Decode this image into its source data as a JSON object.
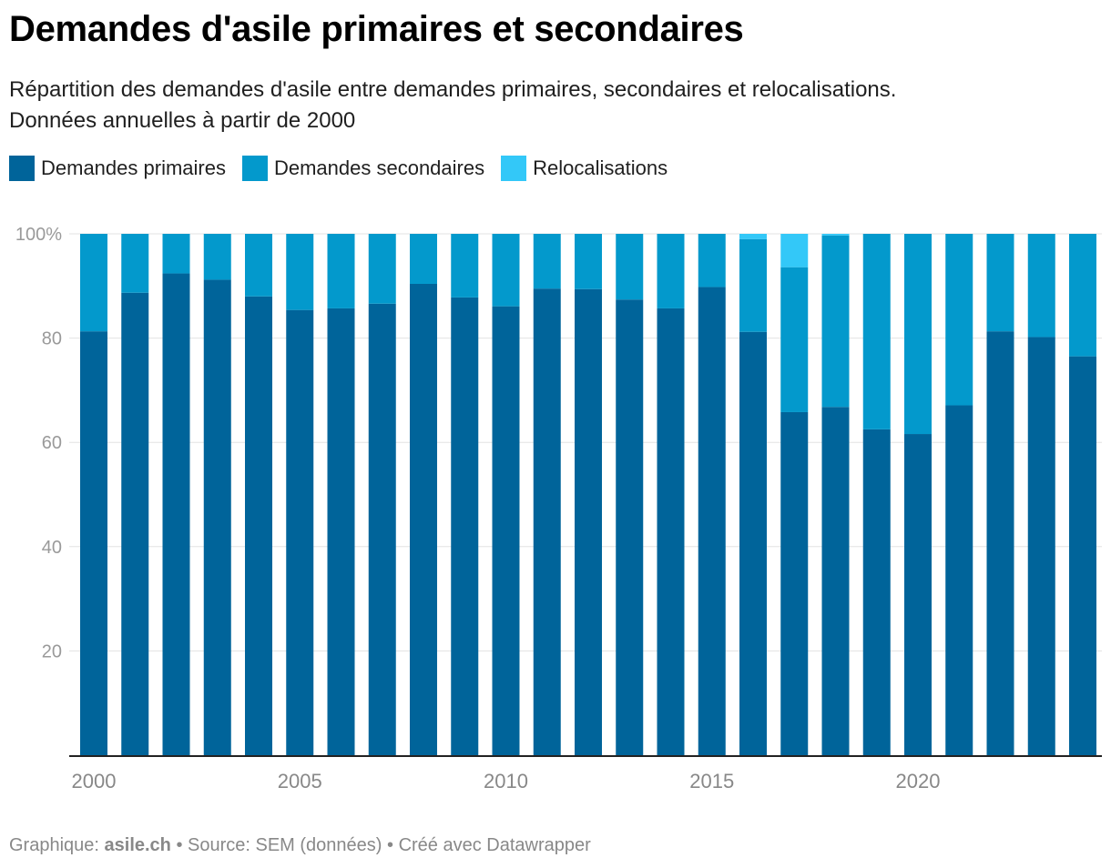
{
  "title": "Demandes d'asile primaires et secondaires",
  "subtitle_line1": "Répartition des demandes d'asile entre demandes primaires, secondaires et relocalisations.",
  "subtitle_line2": "Données annuelles à partir de 2000",
  "legend": [
    {
      "label": "Demandes primaires",
      "color": "#00649a"
    },
    {
      "label": "Demandes secondaires",
      "color": "#0399cc"
    },
    {
      "label": "Relocalisations",
      "color": "#33c8f8"
    }
  ],
  "footer": {
    "prefix": "Graphique: ",
    "brand": "asile.ch",
    "rest": " • Source: SEM (données) • Créé avec Datawrapper"
  },
  "chart_data": {
    "type": "bar",
    "stacked": true,
    "categories": [
      "2000",
      "2001",
      "2002",
      "2003",
      "2004",
      "2005",
      "2006",
      "2007",
      "2008",
      "2009",
      "2010",
      "2011",
      "2012",
      "2013",
      "2014",
      "2015",
      "2016",
      "2017",
      "2018",
      "2019",
      "2020",
      "2021",
      "2022",
      "2023",
      "2024"
    ],
    "series": [
      {
        "name": "Demandes primaires",
        "color": "#00649a",
        "values": [
          81.3,
          88.7,
          92.4,
          91.2,
          88.0,
          85.4,
          85.7,
          86.6,
          90.4,
          87.8,
          86.1,
          89.5,
          89.4,
          87.4,
          85.7,
          89.8,
          81.2,
          65.8,
          66.8,
          62.5,
          61.6,
          67.1,
          81.3,
          80.2,
          76.5
        ]
      },
      {
        "name": "Demandes secondaires",
        "color": "#0399cc",
        "values": [
          18.7,
          11.3,
          7.6,
          8.8,
          12.0,
          14.6,
          14.3,
          13.4,
          9.6,
          12.2,
          13.9,
          10.5,
          10.6,
          12.6,
          14.3,
          10.2,
          17.8,
          27.8,
          32.9,
          37.5,
          38.4,
          32.9,
          18.7,
          19.8,
          23.5
        ]
      },
      {
        "name": "Relocalisations",
        "color": "#33c8f8",
        "values": [
          0,
          0,
          0,
          0,
          0,
          0,
          0,
          0,
          0,
          0,
          0,
          0,
          0,
          0,
          0,
          0,
          1.0,
          6.4,
          0.3,
          0,
          0,
          0,
          0,
          0,
          0
        ]
      }
    ],
    "y_ticks": [
      "100%",
      "80",
      "60",
      "40",
      "20"
    ],
    "y_tick_values": [
      100,
      80,
      60,
      40,
      20
    ],
    "x_tick_labels": [
      "2000",
      "2005",
      "2010",
      "2015",
      "2020"
    ],
    "ylim": [
      0,
      100
    ],
    "xlabel": "",
    "ylabel": ""
  }
}
